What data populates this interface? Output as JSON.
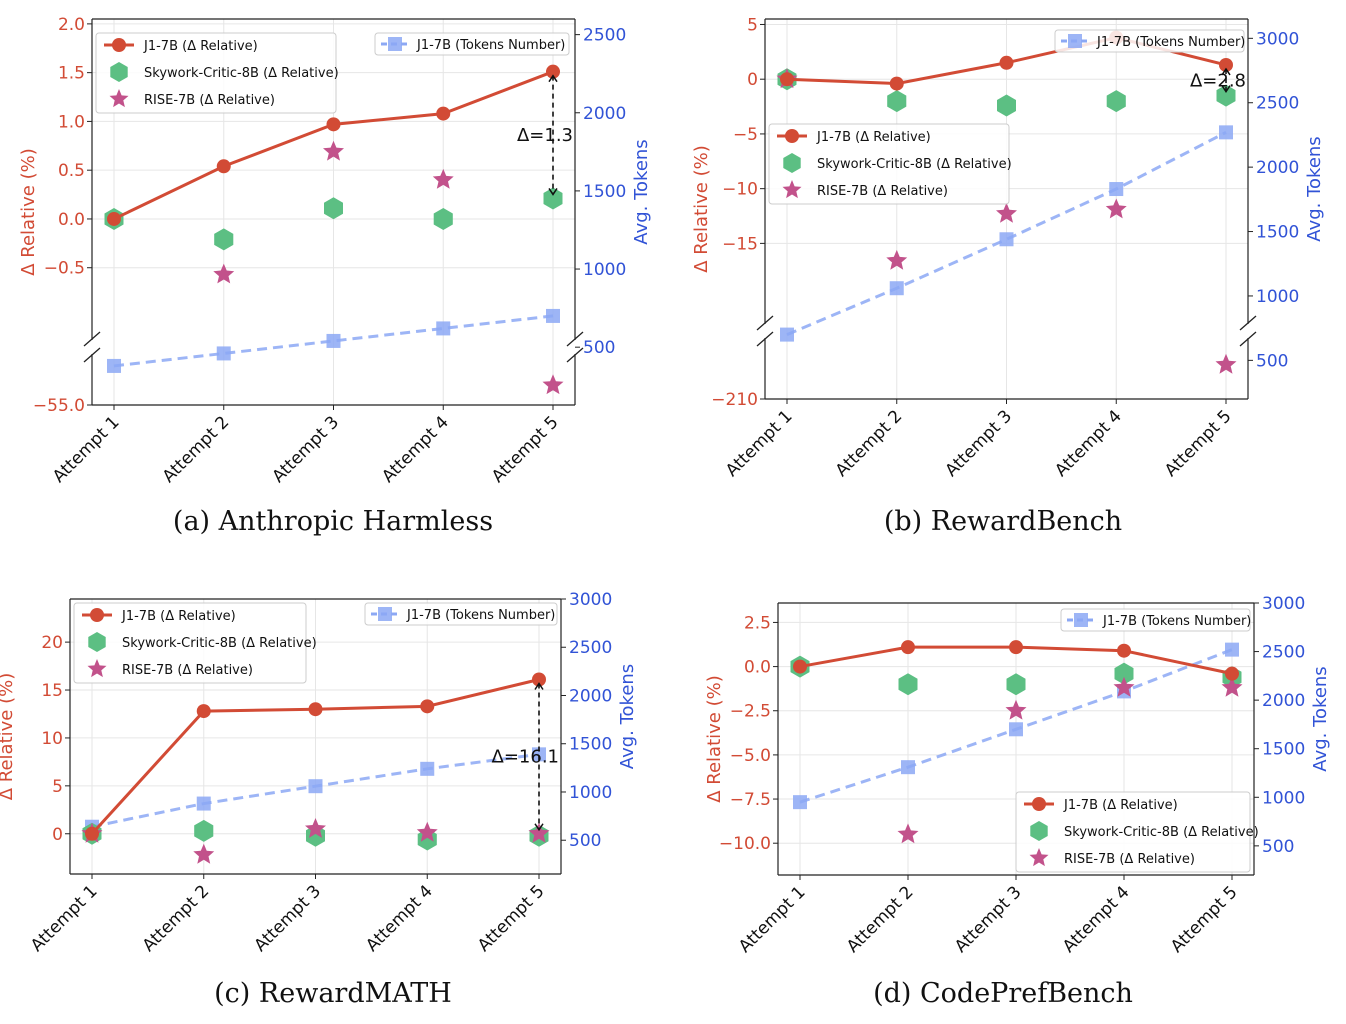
{
  "colors": {
    "j1_relative": "#d24b35",
    "skywork": "#5cbf83",
    "rise": "#c2528b",
    "tokens": "#8ca8f4",
    "left_axis": "#d24b35",
    "right_axis": "#3153d6"
  },
  "legend_labels": {
    "j1_rel": "J1-7B (Δ Relative)",
    "skywork": "Skywork-Critic-8B (Δ Relative)",
    "rise": "RISE-7B (Δ Relative)",
    "tokens": "J1-7B (Tokens Number)"
  },
  "chart_data": [
    {
      "type": "line",
      "caption": "(a) Anthropic Harmless",
      "categories": [
        "Attempt 1",
        "Attempt 2",
        "Attempt 3",
        "Attempt 4",
        "Attempt 5"
      ],
      "ylabel": "Δ Relative (%)",
      "y2label": "Avg. Tokens",
      "y_ticks": [
        "2.0",
        "1.5",
        "1.0",
        "0.5",
        "0.0",
        "−0.5",
        "−55.0"
      ],
      "y2_ticks": [
        "2500",
        "2000",
        "1500",
        "1000",
        "500"
      ],
      "upper_ylim": [
        -1.2,
        2.05
      ],
      "lower_ylim": [
        -55.0,
        -53.1
      ],
      "y2lim": [
        130,
        2600
      ],
      "broken_axis": true,
      "series": [
        {
          "name": "J1-7B (Δ Relative)",
          "axis": "left",
          "values": [
            0.0,
            0.54,
            0.97,
            1.08,
            1.51
          ]
        },
        {
          "name": "Skywork-Critic-8B (Δ Relative)",
          "axis": "left",
          "values": [
            0.0,
            -0.21,
            0.11,
            0.0,
            0.21
          ]
        },
        {
          "name": "RISE-7B (Δ Relative)",
          "axis": "left",
          "values": [
            null,
            -0.57,
            0.69,
            0.4,
            -54.2
          ]
        },
        {
          "name": "J1-7B (Tokens Number)",
          "axis": "right",
          "values": [
            380,
            460,
            540,
            620,
            700
          ]
        }
      ],
      "annotation": {
        "text": "Δ=1.3",
        "attempt": 5,
        "from": 1.51,
        "to": 0.21
      }
    },
    {
      "type": "line",
      "caption": "(b) RewardBench",
      "categories": [
        "Attempt 1",
        "Attempt 2",
        "Attempt 3",
        "Attempt 4",
        "Attempt 5"
      ],
      "ylabel": "Δ Relative (%)",
      "y2label": "Avg. Tokens",
      "y_ticks": [
        "5",
        "0",
        "−5",
        "−10",
        "−15",
        "−210"
      ],
      "y2_ticks": [
        "3000",
        "2500",
        "2000",
        "1500",
        "1000",
        "500"
      ],
      "upper_ylim": [
        -22,
        5.5
      ],
      "lower_ylim": [
        -210,
        -205
      ],
      "y2lim": [
        200,
        3150
      ],
      "broken_axis": true,
      "series": [
        {
          "name": "J1-7B (Δ Relative)",
          "axis": "left",
          "values": [
            0.0,
            -0.4,
            1.5,
            3.8,
            1.3
          ]
        },
        {
          "name": "Skywork-Critic-8B (Δ Relative)",
          "axis": "left",
          "values": [
            0.0,
            -2.0,
            -2.4,
            -2.0,
            -1.5
          ]
        },
        {
          "name": "RISE-7B (Δ Relative)",
          "axis": "left",
          "values": [
            0.0,
            -16.6,
            -12.3,
            -11.9,
            -207.0
          ]
        },
        {
          "name": "J1-7B (Tokens Number)",
          "axis": "right",
          "values": [
            700,
            1060,
            1440,
            1830,
            2270
          ]
        }
      ],
      "annotation": {
        "text": "Δ=2.8",
        "attempt": 5,
        "from": 1.3,
        "to": -1.5
      }
    },
    {
      "type": "line",
      "caption": "(c) RewardMATH",
      "categories": [
        "Attempt 1",
        "Attempt 2",
        "Attempt 3",
        "Attempt 4",
        "Attempt 5"
      ],
      "ylabel": "Δ Relative (%)",
      "y2label": "Avg. Tokens",
      "y_ticks": [
        "20",
        "15",
        "10",
        "5",
        "0"
      ],
      "y2_ticks": [
        "3000",
        "2500",
        "2000",
        "1500",
        "1000",
        "500"
      ],
      "upper_ylim": [
        -4.2,
        24.5
      ],
      "y2lim": [
        150,
        3000
      ],
      "broken_axis": false,
      "series": [
        {
          "name": "J1-7B (Δ Relative)",
          "axis": "left",
          "values": [
            0.0,
            12.8,
            13.0,
            13.3,
            16.1
          ]
        },
        {
          "name": "Skywork-Critic-8B (Δ Relative)",
          "axis": "left",
          "values": [
            0.0,
            0.3,
            -0.2,
            -0.6,
            -0.2
          ]
        },
        {
          "name": "RISE-7B (Δ Relative)",
          "axis": "left",
          "values": [
            0.0,
            -2.2,
            0.5,
            0.1,
            0.0
          ]
        },
        {
          "name": "J1-7B (Tokens Number)",
          "axis": "right",
          "values": [
            640,
            880,
            1060,
            1240,
            1390
          ]
        }
      ],
      "annotation": {
        "text": "Δ=16.1",
        "attempt": 5,
        "from": 16.1,
        "to": 0.0
      }
    },
    {
      "type": "line",
      "caption": "(d) CodePrefBench",
      "categories": [
        "Attempt 1",
        "Attempt 2",
        "Attempt 3",
        "Attempt 4",
        "Attempt 5"
      ],
      "ylabel": "Δ Relative (%)",
      "y2label": "Avg. Tokens",
      "y_ticks": [
        "2.5",
        "0.0",
        "−2.5",
        "−5.0",
        "−7.5",
        "−10.0"
      ],
      "y2_ticks": [
        "3000",
        "2500",
        "2000",
        "1500",
        "1000",
        "500"
      ],
      "upper_ylim": [
        -11.8,
        3.6
      ],
      "y2lim": [
        200,
        3000
      ],
      "broken_axis": false,
      "series": [
        {
          "name": "J1-7B (Δ Relative)",
          "axis": "left",
          "values": [
            0.0,
            1.1,
            1.1,
            0.9,
            -0.4
          ]
        },
        {
          "name": "Skywork-Critic-8B (Δ Relative)",
          "axis": "left",
          "values": [
            0.0,
            -1.0,
            -1.0,
            -0.4,
            -0.6
          ]
        },
        {
          "name": "RISE-7B (Δ Relative)",
          "axis": "left",
          "values": [
            null,
            -9.5,
            -2.5,
            -1.2,
            -1.2
          ]
        },
        {
          "name": "J1-7B (Tokens Number)",
          "axis": "right",
          "values": [
            950,
            1310,
            1700,
            2090,
            2520
          ]
        }
      ],
      "annotation": null
    }
  ]
}
